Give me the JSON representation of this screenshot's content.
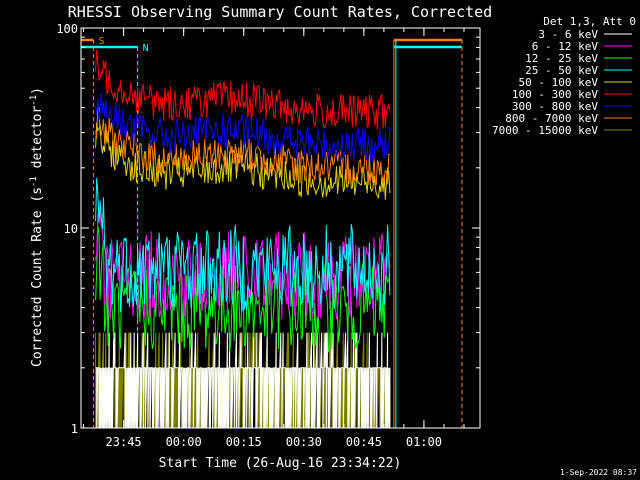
{
  "chart_data": {
    "type": "line",
    "title": "RHESSI Observing Summary Count Rates, Corrected",
    "xlabel": "Start Time (26-Aug-16 23:34:22)",
    "ylabel_main": "Corrected Count Rate (s",
    "ylabel_sup1": "-1",
    "ylabel_mid": " detector",
    "ylabel_sup2": "-1",
    "ylabel_end": ")",
    "yscale": "log",
    "ylim": [
      1,
      100
    ],
    "xlim": [
      "23:34:22",
      "01:14:00"
    ],
    "x_ticks": [
      "23:45",
      "00:00",
      "00:15",
      "00:30",
      "00:45",
      "01:00"
    ],
    "y_ticks": [
      "1",
      "10",
      "100"
    ],
    "legend_title": "Det 1,3, Att 0",
    "legend_position": "top-right",
    "footer": "1-Sep-2022 08:37",
    "flags": [
      {
        "label": "S",
        "color": "#ff7f00",
        "start": "23:34:22",
        "end": "23:37:30"
      },
      {
        "label": "N",
        "color": "#00ffff",
        "start": "23:34:22",
        "end": "23:48:30"
      }
    ],
    "data_start": "23:38:00",
    "data_end": "00:51:30",
    "series": [
      {
        "name": "3 - 6 keV",
        "color": "#ffffff",
        "level": 2.0
      },
      {
        "name": "6 - 12 keV",
        "color": "#ff00ff",
        "level": 5.8
      },
      {
        "name": "12 - 25 keV",
        "color": "#00ff00",
        "level": 4.0
      },
      {
        "name": "25 - 50 keV",
        "color": "#00ffff",
        "level": 6.3
      },
      {
        "name": "50 - 100 keV",
        "color": "#e0d000",
        "level": 17.0
      },
      {
        "name": "100 - 300 keV",
        "color": "#ff0000",
        "level": 38.0
      },
      {
        "name": "300 - 800 keV",
        "color": "#0000ff",
        "level": 26.0
      },
      {
        "name": "800 - 7000 keV",
        "color": "#ff7f00",
        "level": 20.0
      },
      {
        "name": "7000 - 15000 keV",
        "color": "#808000",
        "level": 1.6
      }
    ]
  }
}
